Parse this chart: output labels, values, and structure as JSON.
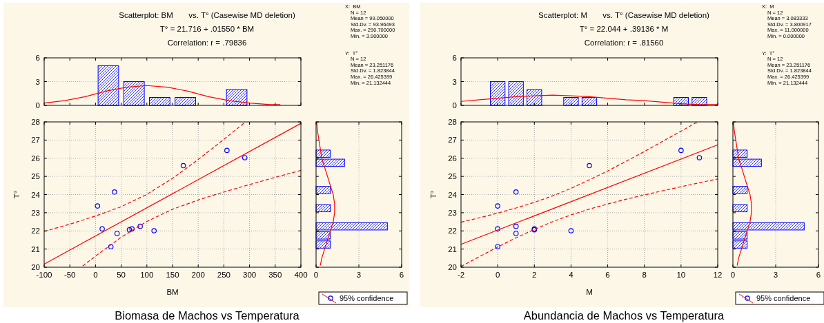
{
  "chart_data": [
    {
      "type": "histogram",
      "title": "Scatterplot: BM       vs. T° (Casewise MD deletion)",
      "subtitle": "T° = 21.716 + .01550 * BM",
      "annotations": [
        "Correlation: r = .79836",
        "X:  BM",
        "N = 12",
        "Mean = 99.050000",
        "Std.Dv. = 93.96493",
        "Max. = 290.700000",
        "Min. = 3.900000",
        "Y:  T°",
        "N = 12",
        "Mean = 23.251176",
        "Std.Dv. = 1.823844",
        "Max. = 26.425399",
        "Min. = 21.132444"
      ],
      "bins": [
        0,
        50,
        100,
        150,
        200,
        250,
        300
      ],
      "values": [
        5,
        3,
        1,
        1,
        0,
        2
      ],
      "color": "#0000ff",
      "series": [
        {
          "type": "line",
          "color": "#ff0000",
          "x": [
            -100,
            -60,
            -20,
            20,
            60,
            100,
            140,
            180,
            220,
            260,
            300,
            340,
            360
          ],
          "values": [
            0.3,
            0.6,
            1.1,
            1.8,
            2.3,
            2.5,
            2.3,
            1.8,
            1.1,
            0.6,
            0.3,
            0.1,
            0.1
          ]
        }
      ],
      "xlim": [
        -100,
        400
      ],
      "xticks": [
        {
          "value": -100,
          "label": null
        },
        {
          "value": -50,
          "label": null
        },
        {
          "value": 0,
          "label": null
        },
        {
          "value": 50,
          "label": null
        },
        {
          "value": 100,
          "label": null
        },
        {
          "value": 150,
          "label": null
        },
        {
          "value": 200,
          "label": null
        },
        {
          "value": 250,
          "label": null
        },
        {
          "value": 300,
          "label": null
        },
        {
          "value": 350,
          "label": null
        },
        {
          "value": 400,
          "label": null
        }
      ],
      "ylim": [
        0,
        6
      ],
      "yticks": [
        0,
        3,
        6
      ],
      "tick_labels": "y",
      "grid": "y"
    },
    {
      "type": "scatter",
      "xlabel": "BM",
      "ylabel": "T°",
      "annotations": [
        "Biomasa de Machos vs Temperatura"
      ],
      "legend": "bottom right",
      "series": [
        {
          "type": "scatter",
          "name": "95% confidence",
          "color": "#0000ff",
          "marker": "circle",
          "x": [
            3.9,
            13,
            30,
            37,
            42,
            66,
            71,
            87,
            114,
            171,
            256,
            290.7
          ],
          "values": [
            23.37,
            22.11,
            21.13,
            24.14,
            21.86,
            22.06,
            22.11,
            22.25,
            22.01,
            25.59,
            26.43,
            26.03
          ]
        },
        {
          "type": "line",
          "color": "#ff0000",
          "x": [
            -100,
            400
          ],
          "values": [
            20.17,
            27.92
          ]
        },
        {
          "type": "line",
          "color": "#ff0000",
          "line_style": "dashed",
          "x": [
            -100,
            -50,
            0,
            50,
            100,
            150,
            200,
            250,
            290
          ],
          "values": [
            21.97,
            22.37,
            22.82,
            23.33,
            24.01,
            24.89,
            25.93,
            27.04,
            27.95
          ]
        },
        {
          "type": "line",
          "color": "#ff0000",
          "line_style": "dashed",
          "x": [
            -25,
            0,
            50,
            100,
            150,
            200,
            250,
            300,
            350,
            400
          ],
          "values": [
            20.07,
            20.61,
            21.65,
            22.52,
            23.19,
            23.7,
            24.14,
            24.55,
            24.95,
            25.33
          ]
        }
      ],
      "xlim": [
        -100,
        400
      ],
      "xticks": [
        -100,
        -50,
        0,
        50,
        100,
        150,
        200,
        250,
        300,
        350,
        400
      ],
      "ylim": [
        20,
        28
      ],
      "yticks": [
        20,
        21,
        22,
        23,
        24,
        25,
        26,
        27,
        28
      ],
      "grid": true
    },
    {
      "type": "histogram",
      "orientation": "horizontal",
      "bins": [
        21,
        21.5,
        22,
        22.5,
        23,
        23.5,
        24,
        24.5,
        25,
        25.5,
        26,
        26.5
      ],
      "values": [
        1,
        1,
        5,
        0,
        1,
        0,
        1,
        0,
        0,
        2,
        1
      ],
      "color": "#0000ff",
      "series": [
        {
          "type": "line",
          "color": "#ff0000",
          "x": [
            20.1,
            20.5,
            21,
            21.5,
            22,
            22.5,
            23,
            23.5,
            24,
            24.5,
            25,
            25.5,
            26,
            26.5,
            27,
            27.5,
            28
          ],
          "values": [
            0.3,
            0.4,
            0.6,
            0.8,
            1.0,
            1.2,
            1.3,
            1.3,
            1.2,
            1.0,
            0.8,
            0.6,
            0.4,
            0.3,
            0.2,
            0.1,
            0.04
          ]
        }
      ],
      "xlim": [
        0,
        6
      ],
      "xticks": [
        0,
        3,
        6
      ],
      "ylim": [
        20,
        28
      ],
      "yticks": [
        {
          "value": 20,
          "label": null
        },
        {
          "value": 21,
          "label": null
        },
        {
          "value": 22,
          "label": null
        },
        {
          "value": 23,
          "label": null
        },
        {
          "value": 24,
          "label": null
        },
        {
          "value": 25,
          "label": null
        },
        {
          "value": 26,
          "label": null
        },
        {
          "value": 27,
          "label": null
        },
        {
          "value": 28,
          "label": null
        }
      ],
      "tick_labels": "x",
      "grid": "x"
    },
    {
      "type": "histogram",
      "title": "Scatterplot: M       vs. T° (Casewise MD deletion)",
      "subtitle": "T° = 22.044 + .39136 * M",
      "annotations": [
        "Correlation: r = .81560",
        "X:  M",
        "N = 12",
        "Mean = 3.083333",
        "Std.Dv. = 3.800917",
        "Max. = 11.000000",
        "Min. = 0.000000",
        "Y:  T°",
        "N = 12",
        "Mean = 23.251176",
        "Std.Dv. = 1.823844",
        "Max. = 26.425399",
        "Min. = 21.132444"
      ],
      "bins": [
        -0.5,
        0.5,
        1.5,
        2.5,
        3.5,
        4.5,
        5.5,
        6.5,
        7.5,
        8.5,
        9.5,
        10.5,
        11.5
      ],
      "values": [
        3,
        3,
        2,
        0,
        1,
        1,
        0,
        0,
        0,
        0,
        1,
        1
      ],
      "color": "#0000ff",
      "series": [
        {
          "type": "line",
          "color": "#ff0000",
          "x": [
            -2,
            -1,
            0,
            1,
            2,
            3,
            4,
            5,
            6,
            7,
            8,
            9,
            10,
            11,
            12
          ],
          "values": [
            0.5,
            0.7,
            0.9,
            1.1,
            1.2,
            1.3,
            1.2,
            1.1,
            0.9,
            0.7,
            0.6,
            0.4,
            0.2,
            0.1,
            0.1
          ]
        }
      ],
      "xlim": [
        -2,
        12
      ],
      "xticks": [
        {
          "value": -2,
          "label": null
        },
        {
          "value": 0,
          "label": null
        },
        {
          "value": 2,
          "label": null
        },
        {
          "value": 4,
          "label": null
        },
        {
          "value": 6,
          "label": null
        },
        {
          "value": 8,
          "label": null
        },
        {
          "value": 10,
          "label": null
        },
        {
          "value": 12,
          "label": null
        }
      ],
      "ylim": [
        0,
        6
      ],
      "yticks": [
        0,
        3,
        6
      ],
      "tick_labels": "y",
      "grid": "y"
    },
    {
      "type": "scatter",
      "xlabel": "M",
      "ylabel": "T°",
      "annotations": [
        "Abundancia de Machos vs Temperatura"
      ],
      "legend": "bottom right",
      "series": [
        {
          "type": "scatter",
          "name": "95% confidence",
          "color": "#0000ff",
          "marker": "circle",
          "x": [
            0,
            0,
            0,
            1,
            1,
            1,
            2,
            2,
            4,
            5,
            10,
            11
          ],
          "values": [
            23.37,
            22.11,
            21.13,
            24.14,
            22.25,
            21.86,
            22.11,
            22.06,
            22.01,
            25.59,
            26.43,
            26.03
          ]
        },
        {
          "type": "line",
          "color": "#ff0000",
          "x": [
            -2,
            12
          ],
          "values": [
            21.26,
            26.74
          ]
        },
        {
          "type": "line",
          "color": "#ff0000",
          "line_style": "dashed",
          "x": [
            -2,
            -1,
            0,
            1,
            2,
            3,
            4,
            5,
            6,
            7,
            8,
            9,
            10,
            10.9
          ],
          "values": [
            22.48,
            22.72,
            22.98,
            23.26,
            23.57,
            23.93,
            24.34,
            24.81,
            25.3,
            25.83,
            26.37,
            26.93,
            27.49,
            28.0
          ]
        },
        {
          "type": "line",
          "color": "#ff0000",
          "line_style": "dashed",
          "x": [
            -2,
            -1,
            0,
            1,
            2,
            3,
            4,
            5,
            6,
            7,
            8,
            9,
            10,
            11,
            12
          ],
          "values": [
            20.04,
            20.58,
            21.11,
            21.62,
            22.08,
            22.51,
            22.88,
            23.2,
            23.48,
            23.74,
            23.98,
            24.21,
            24.43,
            24.65,
            24.86
          ]
        }
      ],
      "xlim": [
        -2,
        12
      ],
      "xticks": [
        -2,
        0,
        2,
        4,
        6,
        8,
        10,
        12
      ],
      "ylim": [
        20,
        28
      ],
      "yticks": [
        20,
        21,
        22,
        23,
        24,
        25,
        26,
        27,
        28
      ],
      "grid": true
    },
    {
      "type": "histogram",
      "orientation": "horizontal",
      "bins": [
        21,
        21.5,
        22,
        22.5,
        23,
        23.5,
        24,
        24.5,
        25,
        25.5,
        26,
        26.5
      ],
      "values": [
        1,
        1,
        5,
        0,
        1,
        0,
        1,
        0,
        0,
        2,
        1
      ],
      "color": "#0000ff",
      "series": [
        {
          "type": "line",
          "color": "#ff0000",
          "x": [
            20.1,
            20.5,
            21,
            21.5,
            22,
            22.5,
            23,
            23.5,
            24,
            24.5,
            25,
            25.5,
            26,
            26.5,
            27,
            27.5,
            28
          ],
          "values": [
            0.3,
            0.4,
            0.6,
            0.8,
            1.0,
            1.2,
            1.3,
            1.3,
            1.2,
            1.0,
            0.8,
            0.6,
            0.4,
            0.3,
            0.2,
            0.1,
            0.04
          ]
        }
      ],
      "xlim": [
        0,
        6
      ],
      "xticks": [
        0,
        3,
        6
      ],
      "ylim": [
        20,
        28
      ],
      "yticks": [
        {
          "value": 20,
          "label": null
        },
        {
          "value": 21,
          "label": null
        },
        {
          "value": 22,
          "label": null
        },
        {
          "value": 23,
          "label": null
        },
        {
          "value": 24,
          "label": null
        },
        {
          "value": 25,
          "label": null
        },
        {
          "value": 26,
          "label": null
        },
        {
          "value": 27,
          "label": null
        },
        {
          "value": 28,
          "label": null
        }
      ],
      "tick_labels": "x",
      "grid": "x"
    }
  ]
}
